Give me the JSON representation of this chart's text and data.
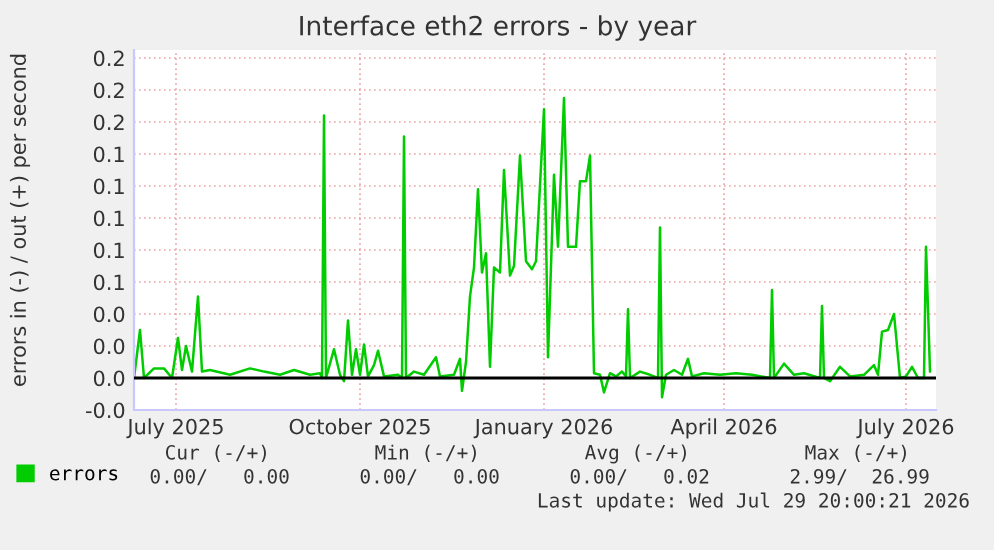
{
  "chart_data": {
    "type": "line",
    "title": "Interface eth2 errors - by year",
    "ylabel": "errors in (-) / out (+) per second",
    "x": [
      "2025-06-25",
      "2025-06-28",
      "2025-06-30",
      "2025-07-05",
      "2025-07-10",
      "2025-07-14",
      "2025-07-17",
      "2025-07-19",
      "2025-07-21",
      "2025-07-24",
      "2025-07-27",
      "2025-07-29",
      "2025-08-02",
      "2025-08-12",
      "2025-08-22",
      "2025-08-29",
      "2025-09-06",
      "2025-09-13",
      "2025-09-21",
      "2025-09-26",
      "2025-09-27",
      "2025-09-28",
      "2025-09-29",
      "2025-10-03",
      "2025-10-06",
      "2025-10-08",
      "2025-10-10",
      "2025-10-12",
      "2025-10-14",
      "2025-10-16",
      "2025-10-18",
      "2025-10-20",
      "2025-10-23",
      "2025-10-25",
      "2025-10-28",
      "2025-11-04",
      "2025-11-06",
      "2025-11-07",
      "2025-11-08",
      "2025-11-12",
      "2025-11-17",
      "2025-11-23",
      "2025-11-25",
      "2025-12-02",
      "2025-12-05",
      "2025-12-06",
      "2025-12-08",
      "2025-12-10",
      "2025-12-12",
      "2025-12-14",
      "2025-12-16",
      "2025-12-18",
      "2025-12-20",
      "2025-12-22",
      "2025-12-25",
      "2025-12-27",
      "2025-12-30",
      "2026-01-01",
      "2026-01-04",
      "2026-01-07",
      "2026-01-10",
      "2026-01-12",
      "2026-01-16",
      "2026-01-18",
      "2026-01-21",
      "2026-01-23",
      "2026-01-26",
      "2026-01-28",
      "2026-02-01",
      "2026-02-03",
      "2026-02-06",
      "2026-02-08",
      "2026-02-10",
      "2026-02-13",
      "2026-02-15",
      "2026-02-18",
      "2026-02-21",
      "2026-02-24",
      "2026-02-26",
      "2026-02-27",
      "2026-02-28",
      "2026-03-05",
      "2026-03-10",
      "2026-03-14",
      "2026-03-15",
      "2026-03-16",
      "2026-03-18",
      "2026-03-22",
      "2026-03-26",
      "2026-03-29",
      "2026-03-31",
      "2026-04-06",
      "2026-04-14",
      "2026-04-22",
      "2026-04-30",
      "2026-05-09",
      "2026-05-10",
      "2026-05-11",
      "2026-05-16",
      "2026-05-21",
      "2026-05-26",
      "2026-06-03",
      "2026-06-04",
      "2026-06-05",
      "2026-06-08",
      "2026-06-13",
      "2026-06-18",
      "2026-06-25",
      "2026-06-30",
      "2026-07-02",
      "2026-07-04",
      "2026-07-07",
      "2026-07-10",
      "2026-07-13",
      "2026-07-16",
      "2026-07-19",
      "2026-07-22",
      "2026-07-25",
      "2026-07-26",
      "2026-07-28"
    ],
    "series": [
      {
        "name": "errors",
        "color": "#00cc00",
        "values": [
          0,
          0.03,
          0,
          0.006,
          0.006,
          0,
          0.025,
          0.005,
          0.02,
          0.004,
          0.051,
          0.004,
          0.005,
          0.002,
          0.006,
          0.004,
          0.002,
          0.005,
          0.002,
          0.003,
          0,
          0.164,
          0,
          0.018,
          0.002,
          -0.002,
          0.036,
          0.002,
          0.018,
          0.002,
          0.021,
          0.001,
          0.008,
          0.017,
          0.001,
          0.002,
          0,
          0.151,
          0,
          0.004,
          0.002,
          0.013,
          0.001,
          0.002,
          0.012,
          -0.008,
          0.01,
          0.051,
          0.069,
          0.118,
          0.066,
          0.078,
          0.007,
          0.069,
          0.066,
          0.13,
          0.064,
          0.07,
          0.139,
          0.073,
          0.068,
          0.073,
          0.168,
          0.013,
          0.127,
          0.082,
          0.175,
          0.082,
          0.082,
          0.123,
          0.123,
          0.139,
          0.003,
          0.002,
          -0.009,
          0.003,
          0.001,
          0.004,
          0.001,
          0.043,
          0,
          0.004,
          0.002,
          0,
          0.094,
          -0.012,
          0.002,
          0.005,
          0.002,
          0.012,
          0.001,
          0.003,
          0.002,
          0.003,
          0.002,
          0,
          0.055,
          0,
          0.009,
          0.002,
          0.003,
          0,
          0.045,
          0,
          -0.002,
          0.007,
          0.001,
          0.002,
          0.008,
          0.002,
          0.029,
          0.03,
          0.04,
          0,
          0.001,
          0.007,
          0,
          0,
          0.082,
          0.004
        ]
      }
    ],
    "xlim": [
      "2025-06-25",
      "2026-07-31"
    ],
    "xticks": [
      {
        "value": "2025-07-16",
        "label": "July 2025"
      },
      {
        "value": "2025-10-16",
        "label": "October 2025"
      },
      {
        "value": "2026-01-16",
        "label": "January 2026"
      },
      {
        "value": "2026-04-16",
        "label": "April 2026"
      },
      {
        "value": "2026-07-16",
        "label": "July 2026"
      }
    ],
    "ylim": [
      -0.02,
      0.205
    ],
    "yticks": [
      {
        "value": -0.02,
        "label": "-0.0"
      },
      {
        "value": 0,
        "label": "0.0"
      },
      {
        "value": 0.02,
        "label": "0.0"
      },
      {
        "value": 0.04,
        "label": "0.0"
      },
      {
        "value": 0.06,
        "label": "0.1"
      },
      {
        "value": 0.08,
        "label": "0.1"
      },
      {
        "value": 0.1,
        "label": "0.1"
      },
      {
        "value": 0.12,
        "label": "0.1"
      },
      {
        "value": 0.14,
        "label": "0.1"
      },
      {
        "value": 0.16,
        "label": "0.2"
      },
      {
        "value": 0.18,
        "label": "0.2"
      },
      {
        "value": 0.2,
        "label": "0.2"
      }
    ],
    "ref_lines": [
      {
        "axis": "y",
        "value": 0,
        "color": "#000000"
      }
    ],
    "grid": true,
    "legend": "bottom left",
    "annotations": [
      "Cur (-/+)",
      "Min (-/+)",
      "Avg (-/+)",
      "Max (-/+)",
      "0.00/   0.00",
      "0.00/   0.00",
      "0.00/   0.02",
      "2.99/  26.99",
      "Last update: Wed Jul 29 20:00:21 2026"
    ]
  }
}
